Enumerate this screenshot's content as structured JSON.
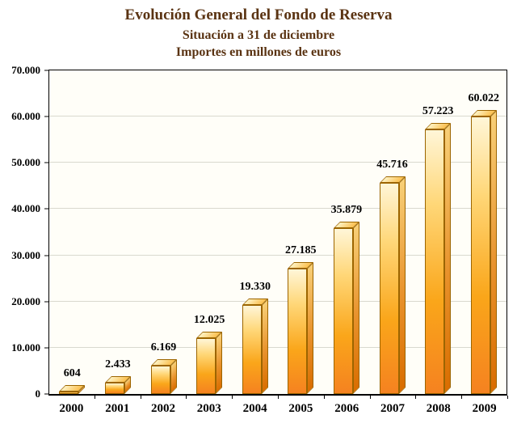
{
  "title": {
    "line1": "Evolución General del Fondo de Reserva",
    "line2": "Situación a 31 de diciembre",
    "line3": "Importes en millones de euros"
  },
  "chart_data": {
    "type": "bar",
    "title": "Evolución General del Fondo de Reserva",
    "subtitle": "Situación a 31 de diciembre",
    "units_note": "Importes en millones de euros",
    "categories": [
      "2000",
      "2001",
      "2002",
      "2003",
      "2004",
      "2005",
      "2006",
      "2007",
      "2008",
      "2009"
    ],
    "values": [
      604,
      2433,
      6169,
      12025,
      19330,
      27185,
      35879,
      45716,
      57223,
      60022
    ],
    "value_labels": [
      "604",
      "2.433",
      "6.169",
      "12.025",
      "19.330",
      "27.185",
      "35.879",
      "45.716",
      "57.223",
      "60.022"
    ],
    "xlabel": "",
    "ylabel": "",
    "ylim": [
      0,
      70000
    ],
    "ytick_step": 10000,
    "ytick_labels": [
      "0",
      "10.000",
      "20.000",
      "30.000",
      "40.000",
      "50.000",
      "60.000",
      "70.000"
    ],
    "grid": true,
    "legend": "none",
    "bar_style": "3d",
    "colors": {
      "bar_bottom": "#f58220",
      "bar_top": "#fff6d8",
      "bar_side": "#d96d00",
      "title_text": "#5a3312",
      "axis_text": "#000000",
      "plot_background": "#fffef8",
      "gridline": "#d9d9cf"
    }
  }
}
